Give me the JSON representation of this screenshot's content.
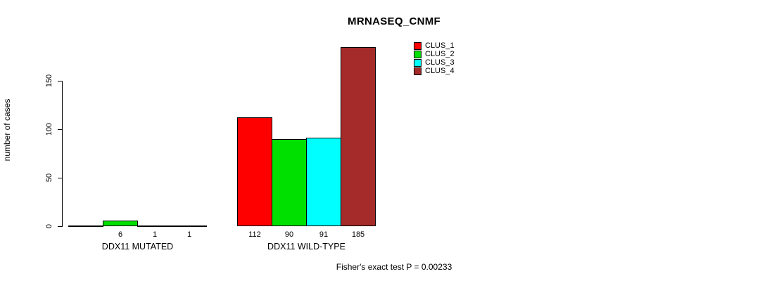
{
  "title": "MRNASEQ_CNMF",
  "chart_data": {
    "type": "bar",
    "title": "MRNASEQ_CNMF",
    "ylabel": "number of cases",
    "xlabel": "",
    "yticks": [
      0,
      50,
      100,
      150
    ],
    "ylim": [
      0,
      190
    ],
    "grid": false,
    "legend_position": "top-right-inside",
    "series_names": [
      "CLUS_1",
      "CLUS_2",
      "CLUS_3",
      "CLUS_4"
    ],
    "colors": [
      "#FF0000",
      "#00E000",
      "#00FFFF",
      "#A52A2A"
    ],
    "groups": [
      {
        "label": "DDX11 MUTATED",
        "values": [
          0,
          6,
          1,
          1
        ],
        "bar_labels": [
          "",
          "6",
          "1",
          "1"
        ]
      },
      {
        "label": "DDX11 WILD-TYPE",
        "values": [
          112,
          90,
          91,
          185
        ],
        "bar_labels": [
          "112",
          "90",
          "91",
          "185"
        ]
      }
    ],
    "annotation": "Fisher's exact test P = 0.00233"
  },
  "legend": {
    "items": [
      {
        "label": "CLUS_1",
        "color": "#FF0000"
      },
      {
        "label": "CLUS_2",
        "color": "#00E000"
      },
      {
        "label": "CLUS_3",
        "color": "#00FFFF"
      },
      {
        "label": "CLUS_4",
        "color": "#A52A2A"
      }
    ]
  }
}
